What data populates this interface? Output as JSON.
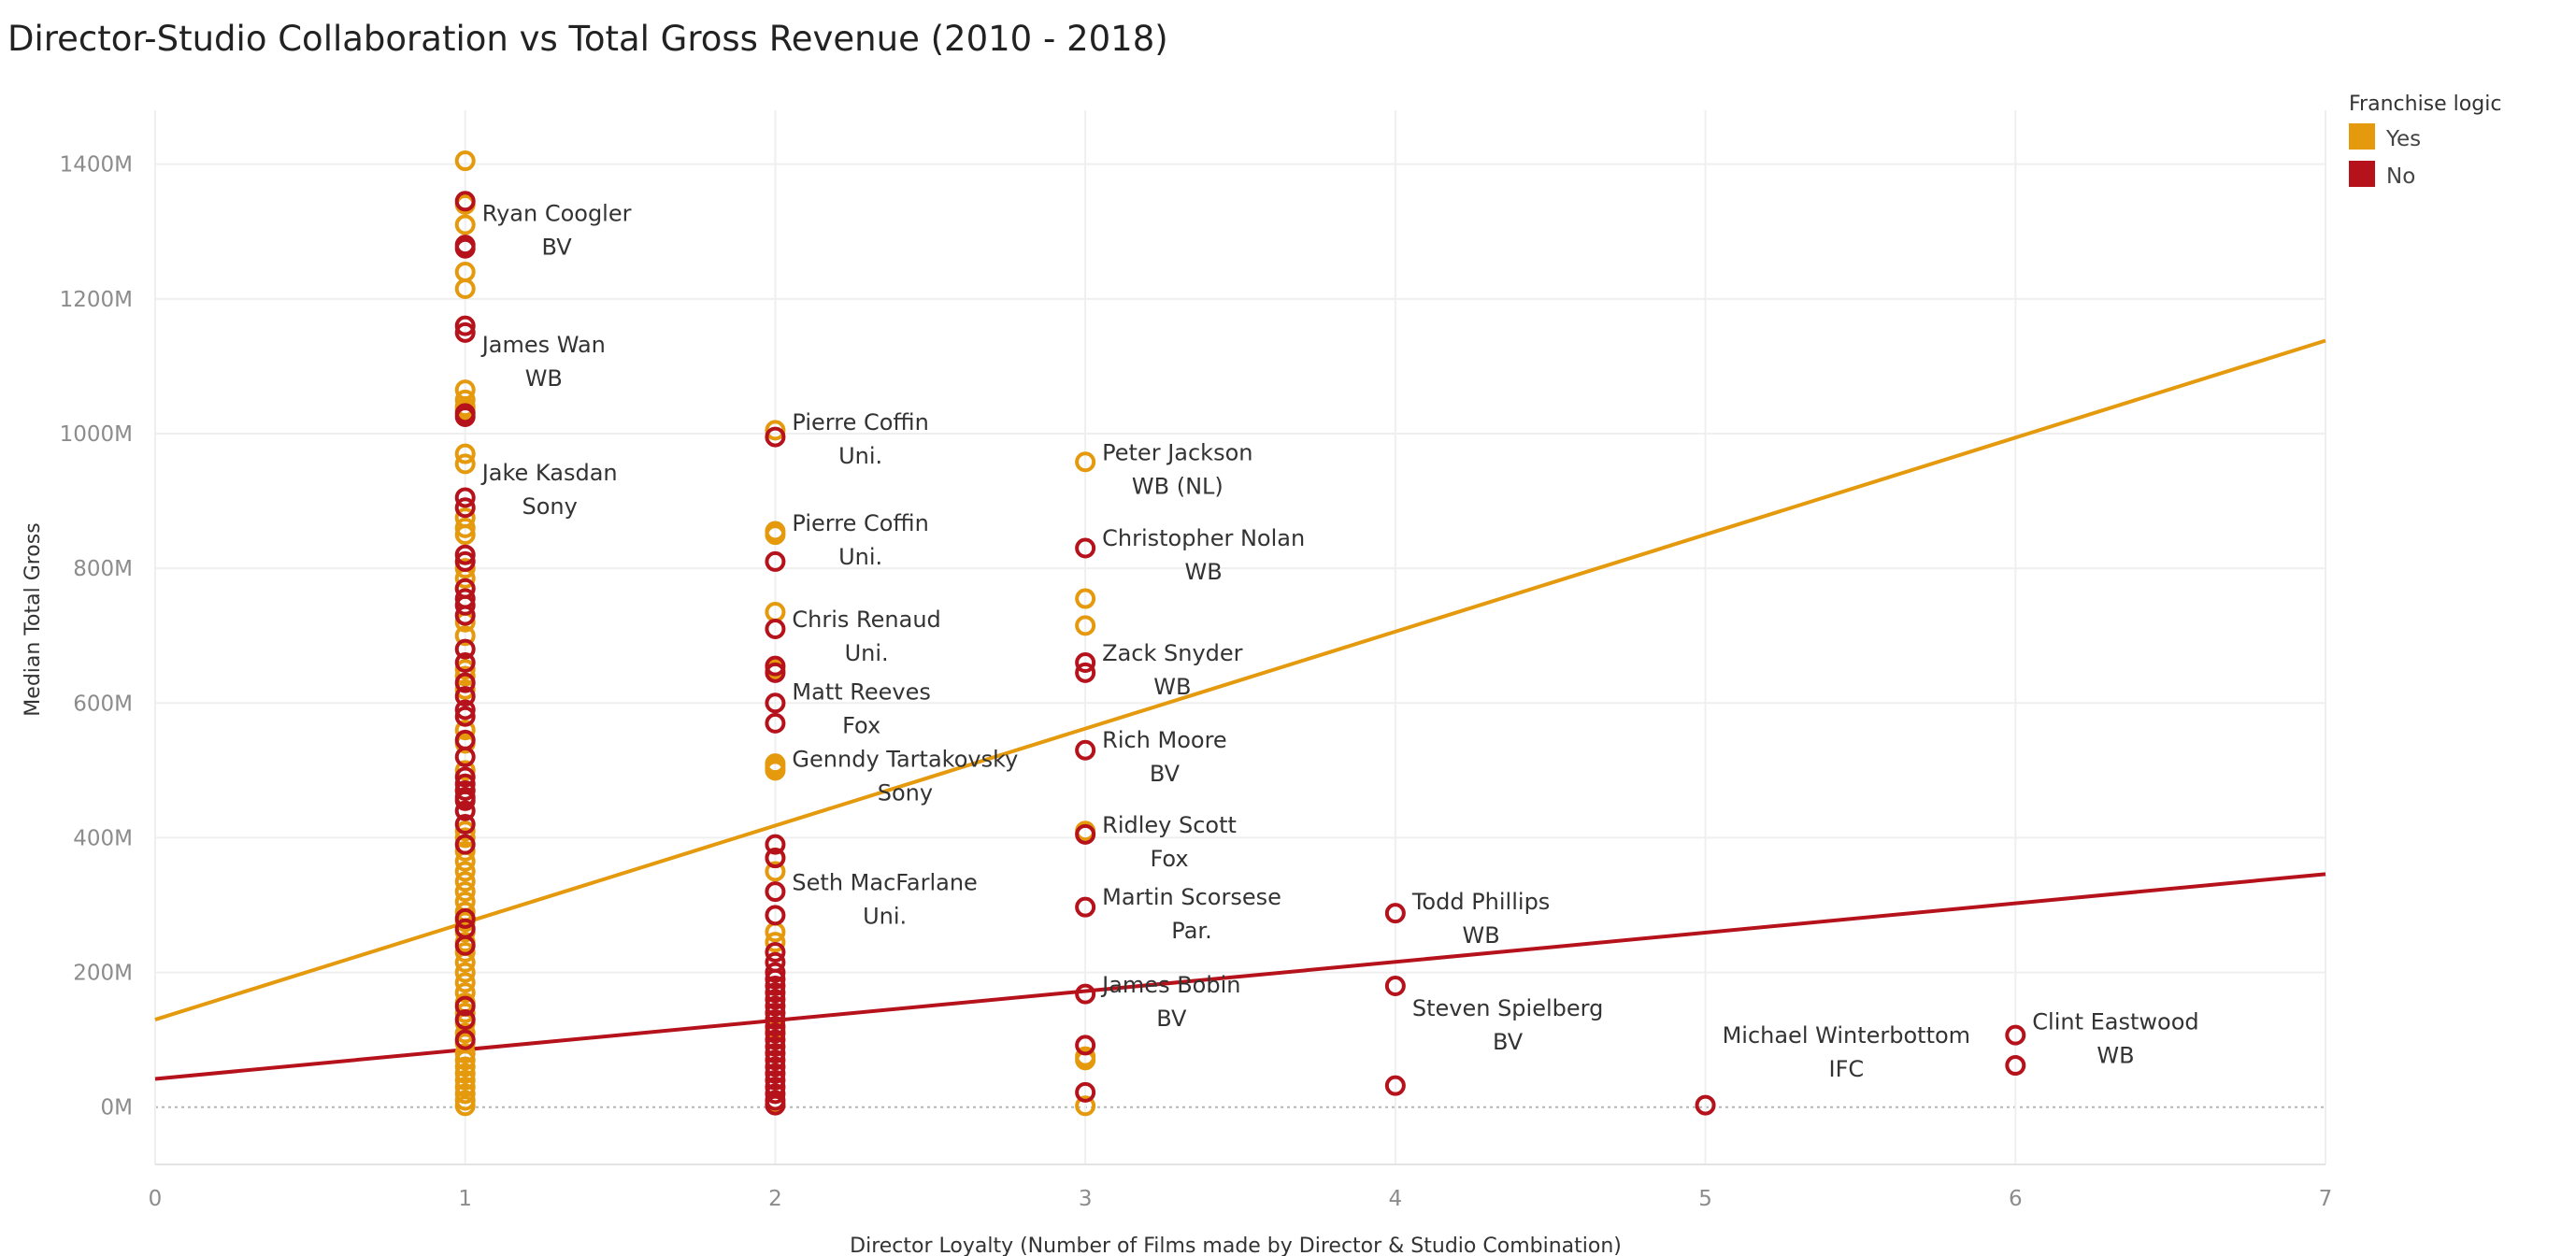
{
  "chart_data": {
    "type": "scatter",
    "title": "Director-Studio Collaboration vs Total Gross Revenue (2010 - 2018)",
    "xlabel": "Director Loyalty (Number of Films made by Director & Studio Combination)",
    "ylabel": "Median Total Gross",
    "xlim": [
      0,
      7
    ],
    "ylim": [
      -85,
      1480
    ],
    "x_ticks": [
      "0",
      "1",
      "2",
      "3",
      "4",
      "5",
      "6",
      "7"
    ],
    "y_ticks": [
      "0M",
      "200M",
      "400M",
      "600M",
      "800M",
      "1000M",
      "1200M",
      "1400M"
    ],
    "grid": true,
    "legend": {
      "title": "Franchise logic",
      "placement": "top-right",
      "items": [
        {
          "label": "Yes",
          "color": "#E5990D"
        },
        {
          "label": "No",
          "color": "#B5121B"
        }
      ]
    },
    "colors": {
      "Yes": "#E5990D",
      "No": "#B5121B"
    },
    "series": [
      {
        "name": "Yes",
        "color": "#E5990D",
        "points": [
          [
            1,
            1405
          ],
          [
            1,
            1340
          ],
          [
            1,
            1310
          ],
          [
            1,
            1240
          ],
          [
            1,
            1215
          ],
          [
            1,
            1065
          ],
          [
            1,
            1050
          ],
          [
            1,
            1040
          ],
          [
            1,
            1035
          ],
          [
            1,
            970
          ],
          [
            1,
            955
          ],
          [
            1,
            875
          ],
          [
            1,
            860
          ],
          [
            1,
            850
          ],
          [
            1,
            800
          ],
          [
            1,
            785
          ],
          [
            1,
            770
          ],
          [
            1,
            720
          ],
          [
            1,
            700
          ],
          [
            1,
            650
          ],
          [
            1,
            640
          ],
          [
            1,
            620
          ],
          [
            1,
            560
          ],
          [
            1,
            540
          ],
          [
            1,
            500
          ],
          [
            1,
            470
          ],
          [
            1,
            410
          ],
          [
            1,
            400
          ],
          [
            1,
            380
          ],
          [
            1,
            365
          ],
          [
            1,
            350
          ],
          [
            1,
            335
          ],
          [
            1,
            320
          ],
          [
            1,
            305
          ],
          [
            1,
            290
          ],
          [
            1,
            275
          ],
          [
            1,
            260
          ],
          [
            1,
            245
          ],
          [
            1,
            230
          ],
          [
            1,
            215
          ],
          [
            1,
            200
          ],
          [
            1,
            185
          ],
          [
            1,
            170
          ],
          [
            1,
            155
          ],
          [
            1,
            140
          ],
          [
            1,
            125
          ],
          [
            1,
            110
          ],
          [
            1,
            95
          ],
          [
            1,
            80
          ],
          [
            1,
            70
          ],
          [
            1,
            60
          ],
          [
            1,
            50
          ],
          [
            1,
            40
          ],
          [
            1,
            30
          ],
          [
            1,
            20
          ],
          [
            1,
            10
          ],
          [
            1,
            2
          ],
          [
            2,
            1005
          ],
          [
            2,
            855
          ],
          [
            2,
            850
          ],
          [
            2,
            735
          ],
          [
            2,
            650
          ],
          [
            2,
            510
          ],
          [
            2,
            505
          ],
          [
            2,
            500
          ],
          [
            2,
            370
          ],
          [
            2,
            350
          ],
          [
            2,
            260
          ],
          [
            2,
            245
          ],
          [
            2,
            115
          ],
          [
            2,
            110
          ],
          [
            2,
            5
          ],
          [
            3,
            958
          ],
          [
            3,
            755
          ],
          [
            3,
            715
          ],
          [
            3,
            410
          ],
          [
            3,
            75
          ],
          [
            3,
            70
          ],
          [
            3,
            2
          ]
        ]
      },
      {
        "name": "No",
        "color": "#B5121B",
        "points": [
          [
            1,
            1345
          ],
          [
            1,
            1280
          ],
          [
            1,
            1275
          ],
          [
            1,
            1160
          ],
          [
            1,
            1150
          ],
          [
            1,
            1030
          ],
          [
            1,
            1025
          ],
          [
            1,
            905
          ],
          [
            1,
            890
          ],
          [
            1,
            820
          ],
          [
            1,
            810
          ],
          [
            1,
            770
          ],
          [
            1,
            755
          ],
          [
            1,
            745
          ],
          [
            1,
            730
          ],
          [
            1,
            680
          ],
          [
            1,
            660
          ],
          [
            1,
            630
          ],
          [
            1,
            610
          ],
          [
            1,
            590
          ],
          [
            1,
            580
          ],
          [
            1,
            545
          ],
          [
            1,
            520
          ],
          [
            1,
            490
          ],
          [
            1,
            480
          ],
          [
            1,
            470
          ],
          [
            1,
            460
          ],
          [
            1,
            455
          ],
          [
            1,
            440
          ],
          [
            1,
            420
          ],
          [
            1,
            390
          ],
          [
            1,
            280
          ],
          [
            1,
            265
          ],
          [
            1,
            240
          ],
          [
            1,
            150
          ],
          [
            1,
            130
          ],
          [
            1,
            100
          ],
          [
            2,
            995
          ],
          [
            2,
            810
          ],
          [
            2,
            710
          ],
          [
            2,
            655
          ],
          [
            2,
            645
          ],
          [
            2,
            600
          ],
          [
            2,
            570
          ],
          [
            2,
            390
          ],
          [
            2,
            370
          ],
          [
            2,
            320
          ],
          [
            2,
            285
          ],
          [
            2,
            230
          ],
          [
            2,
            215
          ],
          [
            2,
            200
          ],
          [
            2,
            190
          ],
          [
            2,
            180
          ],
          [
            2,
            170
          ],
          [
            2,
            160
          ],
          [
            2,
            150
          ],
          [
            2,
            140
          ],
          [
            2,
            130
          ],
          [
            2,
            120
          ],
          [
            2,
            110
          ],
          [
            2,
            100
          ],
          [
            2,
            90
          ],
          [
            2,
            80
          ],
          [
            2,
            70
          ],
          [
            2,
            60
          ],
          [
            2,
            50
          ],
          [
            2,
            40
          ],
          [
            2,
            30
          ],
          [
            2,
            20
          ],
          [
            2,
            10
          ],
          [
            2,
            3
          ],
          [
            3,
            830
          ],
          [
            3,
            660
          ],
          [
            3,
            645
          ],
          [
            3,
            530
          ],
          [
            3,
            405
          ],
          [
            3,
            297
          ],
          [
            3,
            168
          ],
          [
            3,
            92
          ],
          [
            3,
            22
          ],
          [
            4,
            288
          ],
          [
            4,
            180
          ],
          [
            4,
            32
          ],
          [
            5,
            3
          ],
          [
            6,
            107
          ],
          [
            6,
            62
          ]
        ]
      }
    ],
    "trend_lines": [
      {
        "name": "Yes",
        "color": "#E5990D",
        "x": [
          0,
          7
        ],
        "y": [
          130,
          1138
        ]
      },
      {
        "name": "No",
        "color": "#B5121B",
        "x": [
          0,
          7
        ],
        "y": [
          42,
          346
        ]
      }
    ],
    "annotations": [
      {
        "x": 1,
        "y": 1310,
        "name": "Ryan Coogler",
        "studio": "BV"
      },
      {
        "x": 1,
        "y": 1115,
        "name": "James Wan",
        "studio": "WB"
      },
      {
        "x": 1,
        "y": 925,
        "name": "Jake Kasdan",
        "studio": "Sony"
      },
      {
        "x": 2,
        "y": 1000,
        "name": "Pierre Coffin",
        "studio": "Uni."
      },
      {
        "x": 2,
        "y": 850,
        "name": "Pierre Coffin",
        "studio": "Uni."
      },
      {
        "x": 2,
        "y": 707,
        "name": "Chris Renaud",
        "studio": "Uni."
      },
      {
        "x": 2,
        "y": 600,
        "name": "Matt Reeves",
        "studio": "Fox"
      },
      {
        "x": 2,
        "y": 500,
        "name": "Genndy Tartakovsky",
        "studio": "Sony"
      },
      {
        "x": 2,
        "y": 317,
        "name": "Seth MacFarlane",
        "studio": "Uni."
      },
      {
        "x": 3,
        "y": 955,
        "name": "Peter Jackson",
        "studio": "WB (NL)"
      },
      {
        "x": 3,
        "y": 828,
        "name": "Christopher Nolan",
        "studio": "WB"
      },
      {
        "x": 3,
        "y": 657,
        "name": "Zack Snyder",
        "studio": "WB"
      },
      {
        "x": 3,
        "y": 528,
        "name": "Rich Moore",
        "studio": "BV"
      },
      {
        "x": 3,
        "y": 402,
        "name": "Ridley Scott",
        "studio": "Fox"
      },
      {
        "x": 3,
        "y": 295,
        "name": "Martin Scorsese",
        "studio": "Par."
      },
      {
        "x": 3,
        "y": 165,
        "name": "James Bobin",
        "studio": "BV"
      },
      {
        "x": 4,
        "y": 288,
        "name": "Todd Phillips",
        "studio": "WB"
      },
      {
        "x": 4,
        "y": 130,
        "name": "Steven Spielberg",
        "studio": "BV"
      },
      {
        "x": 5,
        "y": 90,
        "name": "Michael Winterbottom",
        "studio": "IFC"
      },
      {
        "x": 6,
        "y": 110,
        "name": "Clint Eastwood",
        "studio": "WB"
      }
    ]
  }
}
